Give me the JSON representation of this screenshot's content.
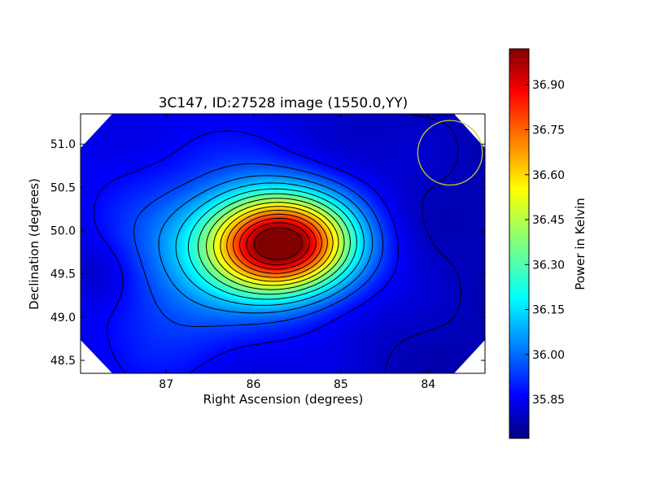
{
  "chart_data": {
    "type": "heatmap",
    "title": "3C147, ID:27528 image (1550.0,YY)",
    "xlabel": "Right Ascension (degrees)",
    "ylabel": "Declination (degrees)",
    "xlim": [
      87.98,
      83.35
    ],
    "ylim": [
      48.35,
      51.35
    ],
    "x_ticks": [
      87,
      86,
      85,
      84
    ],
    "x_tick_labels": [
      "87",
      "86",
      "85",
      "84"
    ],
    "y_ticks": [
      48.5,
      49.0,
      49.5,
      50.0,
      50.5,
      51.0
    ],
    "y_tick_labels": [
      "48.5",
      "49.0",
      "49.5",
      "50.0",
      "50.5",
      "51.0"
    ],
    "colorbar": {
      "label": "Power in Kelvin",
      "range": [
        35.72,
        37.02
      ],
      "ticks": [
        35.85,
        36.0,
        36.15,
        36.3,
        36.45,
        36.6,
        36.75,
        36.9
      ],
      "tick_labels": [
        "35.85",
        "36.00",
        "36.15",
        "36.30",
        "36.45",
        "36.60",
        "36.75",
        "36.90"
      ],
      "colormap": "jet"
    },
    "peak": {
      "ra": 85.7,
      "dec": 49.85,
      "value": 37.0
    },
    "beam": {
      "ra": 83.75,
      "dec": 50.9,
      "radius_deg": 0.37,
      "color": "#c8c832"
    },
    "contours": "black",
    "grid": false
  }
}
